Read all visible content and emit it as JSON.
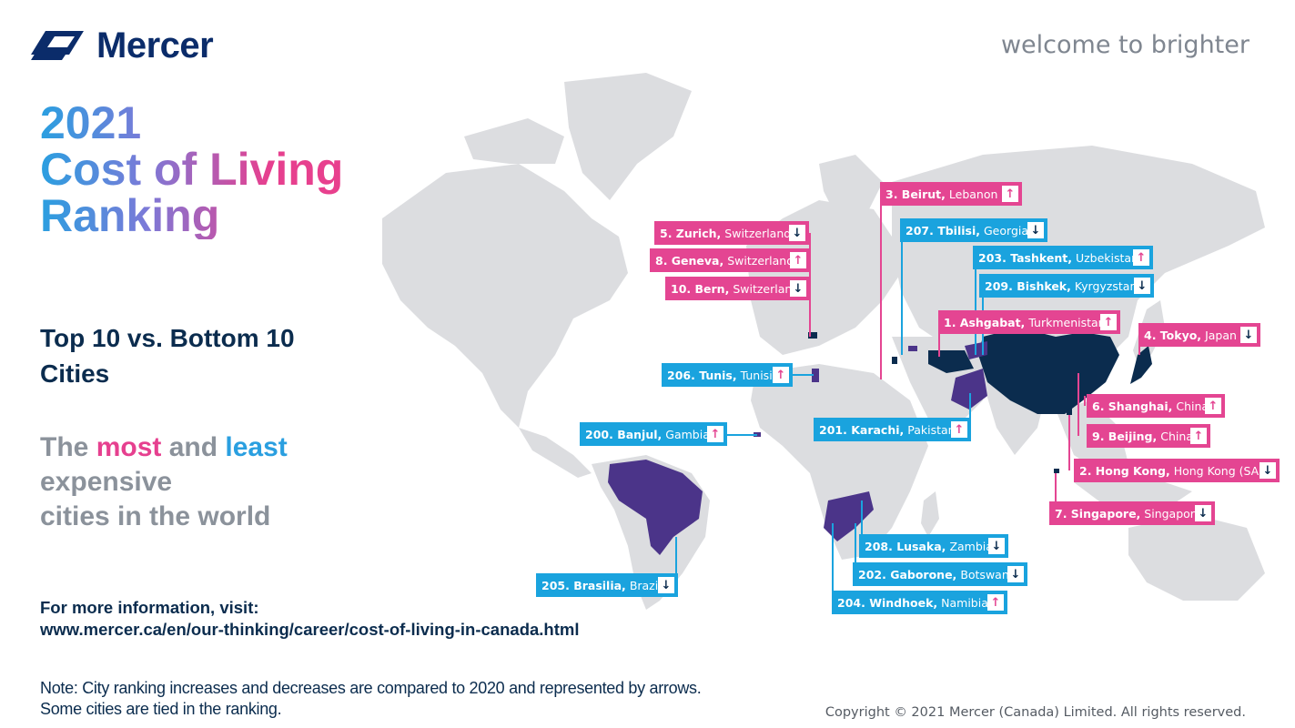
{
  "brand": {
    "name": "Mercer",
    "tagline": "welcome to brighter"
  },
  "title": {
    "line1": "2021",
    "line2": "Cost of Living",
    "line3": "Ranking"
  },
  "subtitle": {
    "line1": "Top 10 vs. Bottom 10",
    "line2": "Cities"
  },
  "description": {
    "the": "The",
    "most": "most",
    "and": "and",
    "least": "least",
    "line2": "expensive",
    "line3": "cities in the world"
  },
  "more_info": {
    "label": "For more information, visit:",
    "url": "www.mercer.ca/en/our-thinking/career/cost-of-living-in-canada.html"
  },
  "note": {
    "line1": "Note: City ranking increases and decreases are compared to 2020 and represented by arrows.",
    "line2": "Some cities are tied in the ranking."
  },
  "copyright": "Copyright © 2021 Mercer (Canada) Limited. All rights reserved.",
  "colors": {
    "most_expensive": "#e44592",
    "least_expensive": "#1aa3de",
    "highlight_country": "#0b2c4e",
    "highlight_country_bottom": "#4b3489",
    "map_land": "#dcdde0"
  },
  "arrow_icons": {
    "up": "arrow-up-icon",
    "down": "arrow-down-icon"
  },
  "cities": [
    {
      "rank": "3.",
      "city": "Beirut",
      "country": "Lebanon",
      "trend": "up",
      "group": "top"
    },
    {
      "rank": "207.",
      "city": "Tbilisi",
      "country": "Georgia",
      "trend": "down",
      "group": "bottom"
    },
    {
      "rank": "5.",
      "city": "Zurich",
      "country": "Switzerland",
      "trend": "down",
      "group": "top"
    },
    {
      "rank": "203.",
      "city": "Tashkent",
      "country": "Uzbekistan",
      "trend": "up",
      "group": "bottom"
    },
    {
      "rank": "8.",
      "city": "Geneva",
      "country": "Switzerland",
      "trend": "up",
      "group": "top"
    },
    {
      "rank": "209.",
      "city": "Bishkek",
      "country": "Kyrgyzstan",
      "trend": "down",
      "group": "bottom"
    },
    {
      "rank": "10.",
      "city": "Bern",
      "country": "Switzerland",
      "trend": "down",
      "group": "top"
    },
    {
      "rank": "1.",
      "city": "Ashgabat",
      "country": "Turkmenistan",
      "trend": "up",
      "group": "top"
    },
    {
      "rank": "4.",
      "city": "Tokyo",
      "country": "Japan",
      "trend": "down",
      "group": "top"
    },
    {
      "rank": "206.",
      "city": "Tunis",
      "country": "Tunisia",
      "trend": "up",
      "group": "bottom"
    },
    {
      "rank": "6.",
      "city": "Shanghai",
      "country": "China",
      "trend": "up",
      "group": "top"
    },
    {
      "rank": "200.",
      "city": "Banjul",
      "country": "Gambia",
      "trend": "up",
      "group": "bottom"
    },
    {
      "rank": "201.",
      "city": "Karachi",
      "country": "Pakistan",
      "trend": "up",
      "group": "bottom"
    },
    {
      "rank": "9.",
      "city": "Beijing",
      "country": "China",
      "trend": "up",
      "group": "top"
    },
    {
      "rank": "2.",
      "city": "Hong Kong",
      "country": "Hong Kong (SAR)",
      "trend": "down",
      "group": "top"
    },
    {
      "rank": "7.",
      "city": "Singapore",
      "country": "Singapore",
      "trend": "down",
      "group": "top"
    },
    {
      "rank": "208.",
      "city": "Lusaka",
      "country": "Zambia",
      "trend": "down",
      "group": "bottom"
    },
    {
      "rank": "202.",
      "city": "Gaborone",
      "country": "Botswana",
      "trend": "down",
      "group": "bottom"
    },
    {
      "rank": "205.",
      "city": "Brasilia",
      "country": "Brazil",
      "trend": "down",
      "group": "bottom"
    },
    {
      "rank": "204.",
      "city": "Windhoek",
      "country": "Namibia",
      "trend": "up",
      "group": "bottom"
    }
  ]
}
